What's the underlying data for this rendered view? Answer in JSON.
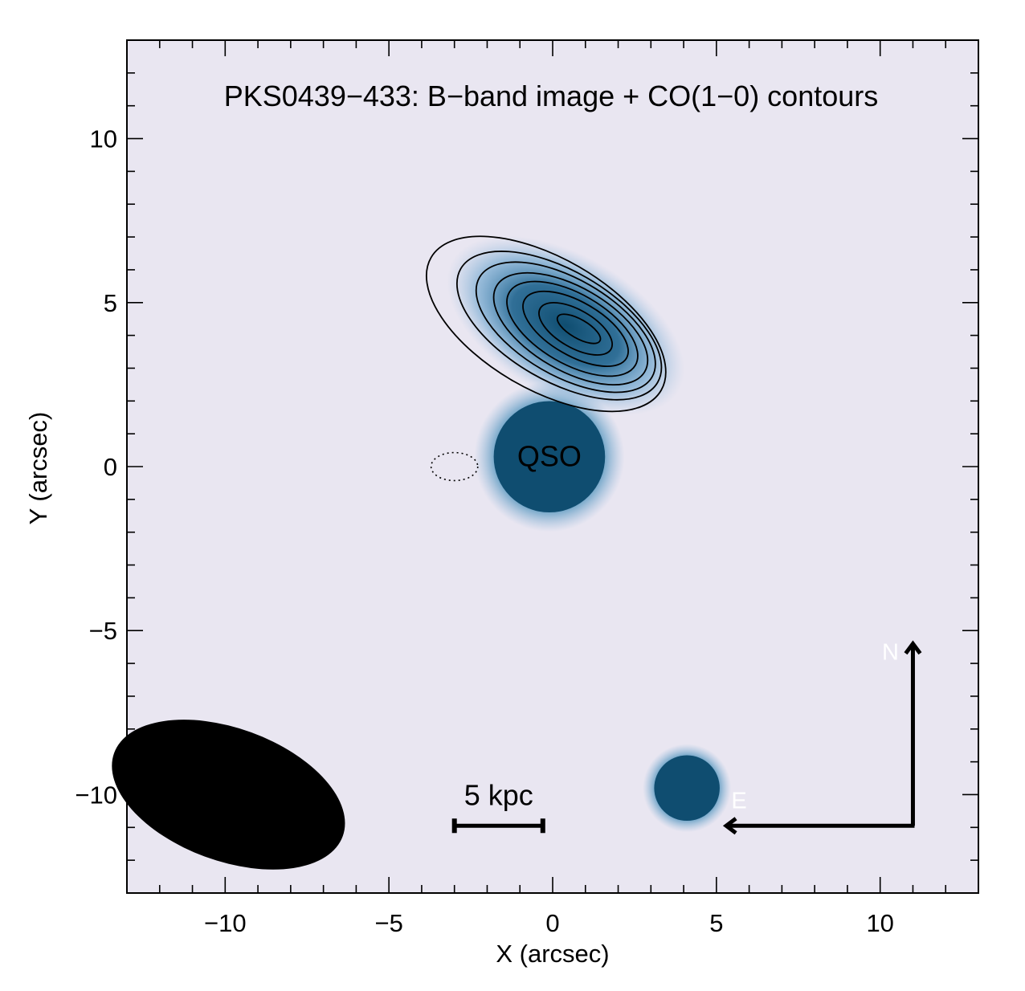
{
  "chart_data": {
    "type": "image-with-contours",
    "title": "PKS0439−433: B−band image + CO(1−0) contours",
    "xlabel": "X (arcsec)",
    "ylabel": "Y (arcsec)",
    "xlim": [
      -13,
      13
    ],
    "ylim": [
      -13,
      13
    ],
    "x_ticks": [
      -10,
      -5,
      0,
      5,
      10
    ],
    "y_ticks": [
      -10,
      -5,
      0,
      5,
      10
    ],
    "x_tick_labels": [
      "−10",
      "−5",
      "0",
      "5",
      "10"
    ],
    "y_tick_labels": [
      "−10",
      "−5",
      "0",
      "5",
      "10"
    ],
    "colors": {
      "background": "#e9e6f1",
      "source": "#0f4d70",
      "contour": "#000000"
    },
    "sources": [
      {
        "label": "QSO",
        "x": -0.1,
        "y": 0.3,
        "radius": 1.7
      },
      {
        "label": "",
        "x": 4.1,
        "y": -9.8,
        "radius": 1.0
      },
      {
        "label": "",
        "x": 0.4,
        "y": 4.3,
        "semi_major": 3.2,
        "semi_minor": 1.6,
        "angle_deg": -30
      }
    ],
    "contours": {
      "center": [
        0.7,
        4.2
      ],
      "angle_deg": -30,
      "levels": [
        {
          "a": 5.2,
          "b": 2.45,
          "dx": -0.9,
          "dy": 0.15
        },
        {
          "a": 4.45,
          "b": 2.05,
          "dx": -0.5,
          "dy": 0.1
        },
        {
          "a": 3.9,
          "b": 1.8,
          "dx": -0.3,
          "dy": 0.05
        },
        {
          "a": 3.35,
          "b": 1.55,
          "dx": -0.15,
          "dy": 0.0
        },
        {
          "a": 2.85,
          "b": 1.3,
          "dx": -0.1,
          "dy": 0.0
        },
        {
          "a": 2.3,
          "b": 1.0,
          "dx": 0.0,
          "dy": 0.0
        },
        {
          "a": 1.6,
          "b": 0.7,
          "dx": 0.0,
          "dy": 0.0
        },
        {
          "a": 0.95,
          "b": 0.35,
          "dx": 0.1,
          "dy": 0.0
        }
      ],
      "negative": {
        "x": -3.0,
        "y": 0.0,
        "a": 0.75,
        "b": 0.45
      }
    },
    "beam": {
      "x": -9.9,
      "y": -10.0,
      "major": 2.3,
      "minor": 1.15,
      "angle_deg": -20
    },
    "scalebar": {
      "label": "5 kpc",
      "x_start": -3.0,
      "x_end": -0.3,
      "y": -10.95
    },
    "compass": {
      "north_label": "N",
      "east_label": "E",
      "corner": [
        11.0,
        -10.95
      ],
      "north_tip": [
        11.0,
        -5.4
      ],
      "east_tip": [
        5.3,
        -10.95
      ]
    },
    "annotations": {
      "qso_label": "QSO"
    }
  }
}
